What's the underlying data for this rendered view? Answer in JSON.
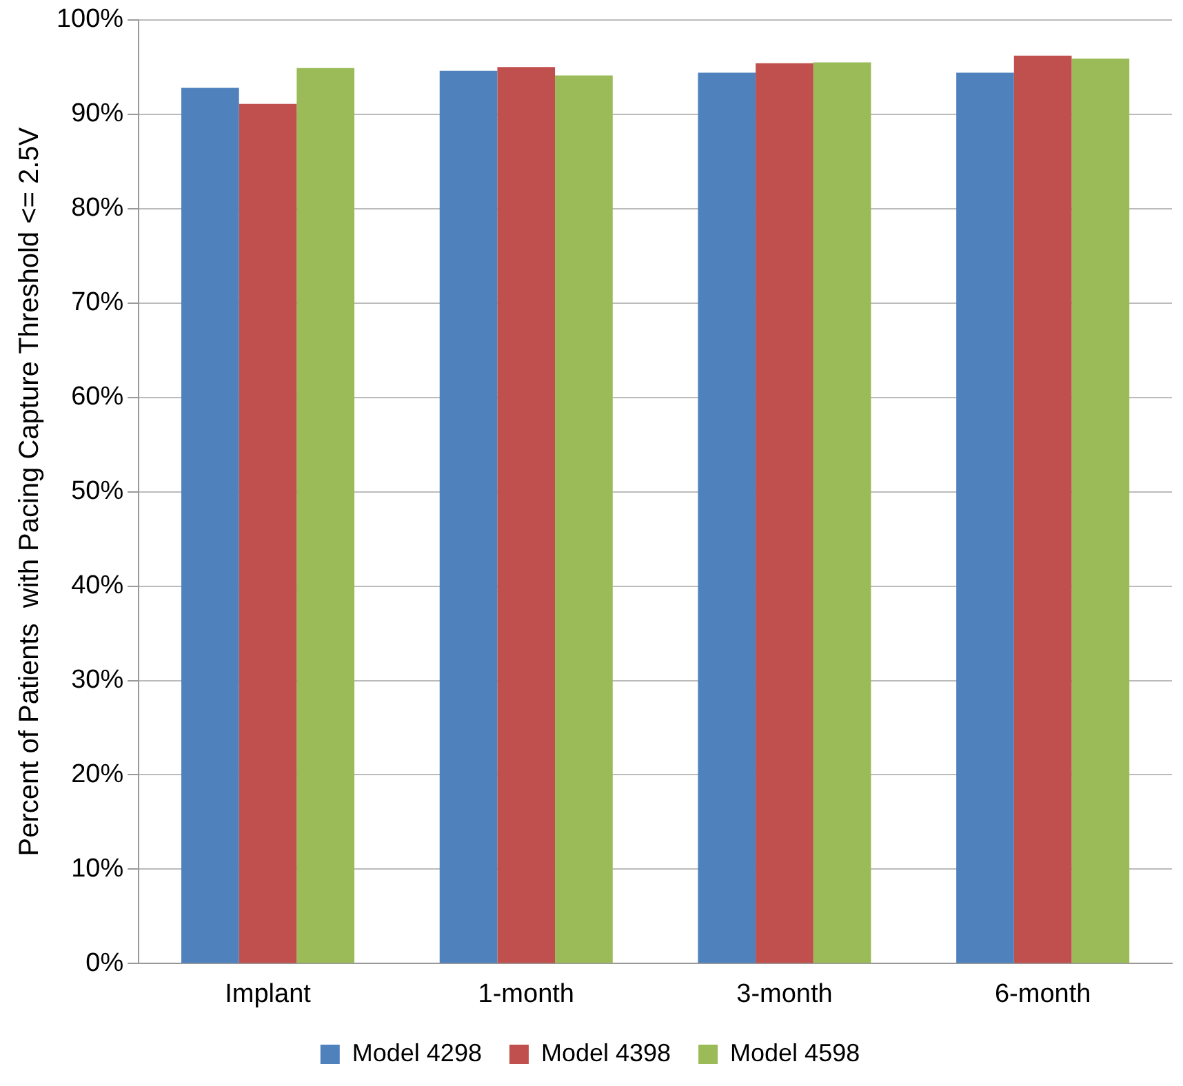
{
  "chart_data": {
    "type": "bar",
    "ylabel": "Percent of Patients  with Pacing Capture Threshold <= 2.5V",
    "categories": [
      "Implant",
      "1-month",
      "3-month",
      "6-month"
    ],
    "series": [
      {
        "name": "Model 4298",
        "color": "#4f81bd",
        "values": [
          92.8,
          94.6,
          94.4,
          94.4
        ]
      },
      {
        "name": "Model 4398",
        "color": "#c0504d",
        "values": [
          91.1,
          95.0,
          95.4,
          96.2
        ]
      },
      {
        "name": "Model 4598",
        "color": "#9bbb59",
        "values": [
          94.9,
          94.1,
          95.5,
          95.9
        ]
      }
    ],
    "ylim": [
      0,
      100
    ],
    "yticks": [
      {
        "value": 0,
        "label": "0%"
      },
      {
        "value": 10,
        "label": "10%"
      },
      {
        "value": 20,
        "label": "20%"
      },
      {
        "value": 30,
        "label": "30%"
      },
      {
        "value": 40,
        "label": "40%"
      },
      {
        "value": 50,
        "label": "50%"
      },
      {
        "value": 60,
        "label": "60%"
      },
      {
        "value": 70,
        "label": "70%"
      },
      {
        "value": 80,
        "label": "80%"
      },
      {
        "value": 90,
        "label": "90%"
      },
      {
        "value": 100,
        "label": "100%"
      }
    ],
    "grid": "y",
    "legend": "bottom"
  }
}
